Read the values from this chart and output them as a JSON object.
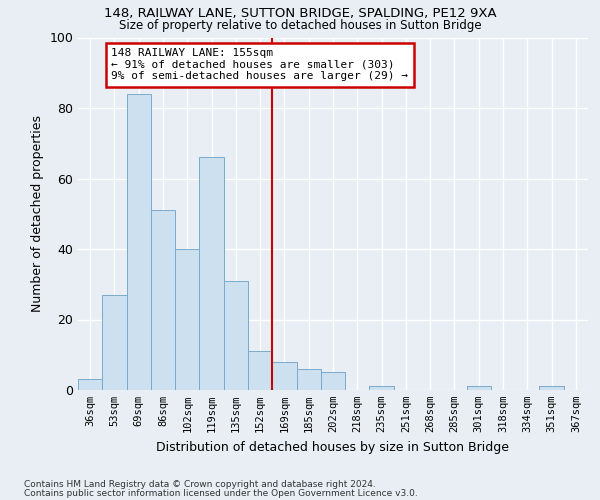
{
  "title1": "148, RAILWAY LANE, SUTTON BRIDGE, SPALDING, PE12 9XA",
  "title2": "Size of property relative to detached houses in Sutton Bridge",
  "xlabel": "Distribution of detached houses by size in Sutton Bridge",
  "ylabel": "Number of detached properties",
  "categories": [
    "36sqm",
    "53sqm",
    "69sqm",
    "86sqm",
    "102sqm",
    "119sqm",
    "135sqm",
    "152sqm",
    "169sqm",
    "185sqm",
    "202sqm",
    "218sqm",
    "235sqm",
    "251sqm",
    "268sqm",
    "285sqm",
    "301sqm",
    "318sqm",
    "334sqm",
    "351sqm",
    "367sqm"
  ],
  "values": [
    3,
    27,
    84,
    51,
    40,
    66,
    31,
    11,
    8,
    6,
    5,
    0,
    1,
    0,
    0,
    0,
    1,
    0,
    0,
    1,
    0
  ],
  "bar_color": "#cce0f0",
  "bar_edge_color": "#7aaacc",
  "property_line_x": 7.5,
  "annotation_title": "148 RAILWAY LANE: 155sqm",
  "annotation_line1": "← 91% of detached houses are smaller (303)",
  "annotation_line2": "9% of semi-detached houses are larger (29) →",
  "annotation_box_color": "#ffffff",
  "annotation_box_edge_color": "#cc0000",
  "vline_color": "#cc0000",
  "background_color": "#e8eef4",
  "grid_color": "#ffffff",
  "footer1": "Contains HM Land Registry data © Crown copyright and database right 2024.",
  "footer2": "Contains public sector information licensed under the Open Government Licence v3.0.",
  "ylim": [
    0,
    100
  ],
  "yticks": [
    0,
    20,
    40,
    60,
    80,
    100
  ]
}
